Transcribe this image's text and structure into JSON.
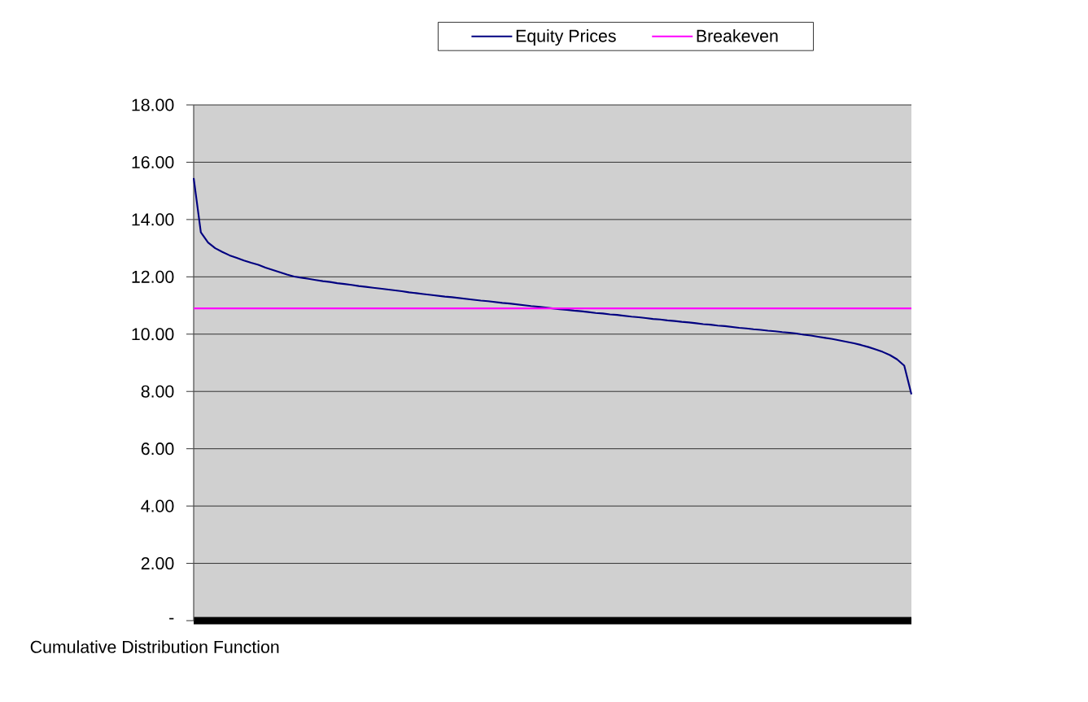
{
  "chart_data": {
    "type": "line",
    "xlabel": "Cumulative Distribution Function",
    "categories": [
      null,
      null,
      null,
      null,
      null,
      null,
      null,
      null,
      null,
      null,
      null,
      null,
      null,
      null,
      null,
      null,
      null,
      null,
      null,
      null,
      null,
      null,
      null,
      null,
      null,
      null,
      null,
      null,
      null,
      null,
      null,
      null,
      null,
      null,
      null,
      null,
      null,
      null,
      null,
      null,
      null,
      null,
      null,
      null,
      null,
      null,
      null,
      null,
      null,
      null,
      null,
      null,
      null,
      null,
      null,
      null,
      null,
      null,
      null,
      null,
      null,
      null,
      null,
      null,
      null,
      null,
      null,
      null,
      null,
      null,
      null,
      null,
      null,
      null,
      null,
      null,
      null,
      null,
      null,
      null,
      null,
      null,
      null,
      null,
      null,
      null,
      null,
      null,
      null,
      null,
      null,
      null,
      null,
      null,
      null,
      null,
      null,
      null,
      null,
      null,
      null
    ],
    "series": [
      {
        "name": "Equity Prices",
        "color": "#000080",
        "values": [
          15.45,
          13.55,
          13.2,
          13.0,
          12.87,
          12.75,
          12.66,
          12.57,
          12.49,
          12.42,
          12.32,
          12.24,
          12.16,
          12.08,
          12.01,
          11.97,
          11.93,
          11.89,
          11.85,
          11.82,
          11.78,
          11.75,
          11.72,
          11.68,
          11.65,
          11.62,
          11.59,
          11.56,
          11.53,
          11.5,
          11.46,
          11.43,
          11.4,
          11.37,
          11.34,
          11.31,
          11.29,
          11.26,
          11.23,
          11.2,
          11.17,
          11.15,
          11.12,
          11.09,
          11.07,
          11.04,
          11.01,
          10.98,
          10.96,
          10.93,
          10.9,
          10.87,
          10.85,
          10.82,
          10.8,
          10.77,
          10.74,
          10.72,
          10.69,
          10.67,
          10.64,
          10.61,
          10.59,
          10.56,
          10.53,
          10.51,
          10.48,
          10.46,
          10.43,
          10.41,
          10.38,
          10.35,
          10.33,
          10.3,
          10.28,
          10.25,
          10.22,
          10.2,
          10.17,
          10.15,
          10.12,
          10.1,
          10.07,
          10.05,
          10.02,
          9.98,
          9.95,
          9.91,
          9.87,
          9.83,
          9.78,
          9.73,
          9.68,
          9.62,
          9.55,
          9.47,
          9.38,
          9.27,
          9.12,
          8.9,
          7.9
        ]
      },
      {
        "name": "Breakeven",
        "color": "#ff00ff",
        "values": [
          10.9,
          10.9,
          10.9,
          10.9,
          10.9,
          10.9,
          10.9,
          10.9,
          10.9,
          10.9,
          10.9,
          10.9,
          10.9,
          10.9,
          10.9,
          10.9,
          10.9,
          10.9,
          10.9,
          10.9,
          10.9,
          10.9,
          10.9,
          10.9,
          10.9,
          10.9,
          10.9,
          10.9,
          10.9,
          10.9,
          10.9,
          10.9,
          10.9,
          10.9,
          10.9,
          10.9,
          10.9,
          10.9,
          10.9,
          10.9,
          10.9,
          10.9,
          10.9,
          10.9,
          10.9,
          10.9,
          10.9,
          10.9,
          10.9,
          10.9,
          10.9,
          10.9,
          10.9,
          10.9,
          10.9,
          10.9,
          10.9,
          10.9,
          10.9,
          10.9,
          10.9,
          10.9,
          10.9,
          10.9,
          10.9,
          10.9,
          10.9,
          10.9,
          10.9,
          10.9,
          10.9,
          10.9,
          10.9,
          10.9,
          10.9,
          10.9,
          10.9,
          10.9,
          10.9,
          10.9,
          10.9,
          10.9,
          10.9,
          10.9,
          10.9,
          10.9,
          10.9,
          10.9,
          10.9,
          10.9,
          10.9,
          10.9,
          10.9,
          10.9,
          10.9,
          10.9,
          10.9,
          10.9,
          10.9,
          10.9,
          10.9
        ]
      }
    ],
    "ylim": [
      0,
      18
    ],
    "yticks": [
      {
        "value": 0,
        "label": "-"
      },
      {
        "value": 2,
        "label": "2.00"
      },
      {
        "value": 4,
        "label": "4.00"
      },
      {
        "value": 6,
        "label": "6.00"
      },
      {
        "value": 8,
        "label": "8.00"
      },
      {
        "value": 10,
        "label": "10.00"
      },
      {
        "value": 12,
        "label": "12.00"
      },
      {
        "value": 14,
        "label": "14.00"
      },
      {
        "value": 16,
        "label": "16.00"
      },
      {
        "value": 18,
        "label": "18.00"
      }
    ],
    "grid": "y",
    "legend": "top",
    "tick_labels": "y"
  }
}
